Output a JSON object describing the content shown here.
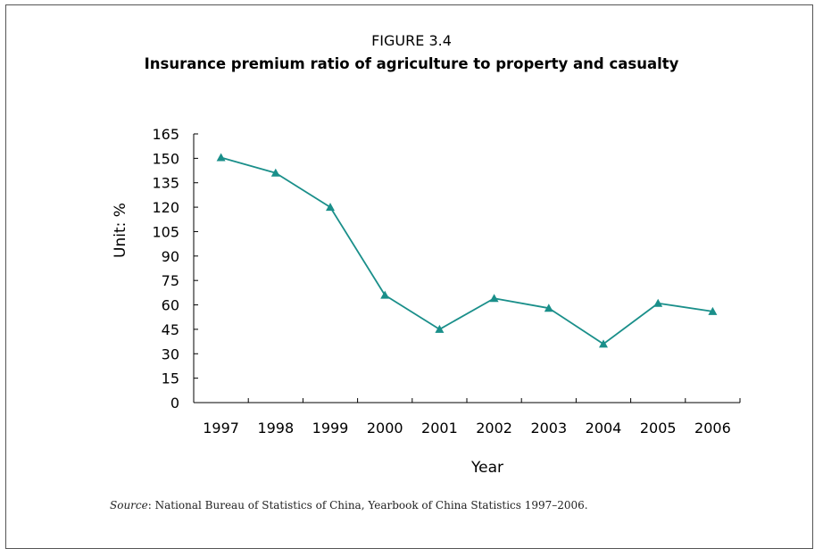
{
  "figure": {
    "label": "FIGURE 3.4",
    "title": "Insurance premium ratio of agriculture to property and casualty"
  },
  "source": {
    "label": "Source",
    "text": ": National Bureau of Statistics of China, Yearbook of China Statistics 1997–2006."
  },
  "colors": {
    "series": "#1a8f8a",
    "axis": "#000000"
  },
  "chart_data": {
    "type": "line",
    "title": "Insurance premium ratio of agriculture to property and casualty",
    "xlabel": "Year",
    "ylabel": "Unit: %",
    "categories": [
      "1997",
      "1998",
      "1999",
      "2000",
      "2001",
      "2002",
      "2003",
      "2004",
      "2005",
      "2006"
    ],
    "series": [
      {
        "values": [
          150.5,
          141,
          120,
          66,
          45,
          64,
          58,
          36,
          61,
          56
        ],
        "marker": "triangle"
      }
    ],
    "ylim": [
      0,
      165
    ],
    "yticks": [
      0,
      15,
      30,
      45,
      60,
      75,
      90,
      105,
      120,
      135,
      150,
      165
    ],
    "grid": false,
    "legend": "none"
  }
}
